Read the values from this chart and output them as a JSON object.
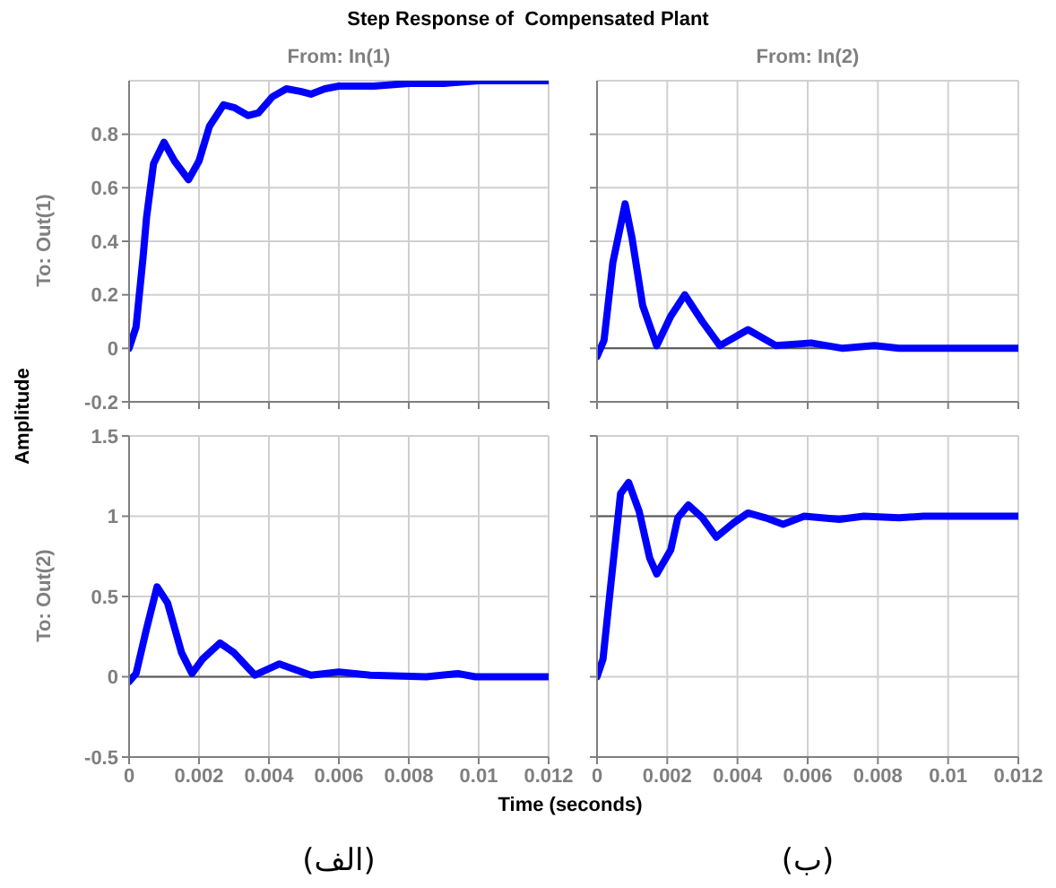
{
  "chart_data": [
    {
      "type": "line",
      "title": "Step Response of  Compensated Plant",
      "subtitle": "From: In(1)",
      "ylabel": "To: Out(1)",
      "annotations": [
        "Amplitude"
      ],
      "x": [
        0,
        0.0002,
        0.0004,
        0.0005,
        0.0007,
        0.001,
        0.0013,
        0.0017,
        0.002,
        0.0023,
        0.0027,
        0.003,
        0.0034,
        0.0037,
        0.0041,
        0.0045,
        0.0049,
        0.0052,
        0.0056,
        0.006,
        0.007,
        0.008,
        0.009,
        0.01,
        0.012
      ],
      "series": [
        {
          "color": "#0000ff",
          "values": [
            0,
            0.08,
            0.34,
            0.49,
            0.69,
            0.77,
            0.7,
            0.63,
            0.7,
            0.83,
            0.91,
            0.9,
            0.87,
            0.88,
            0.94,
            0.97,
            0.96,
            0.95,
            0.97,
            0.98,
            0.98,
            0.99,
            0.99,
            1.0,
            1.0
          ]
        }
      ],
      "xlim": [
        0,
        0.012
      ],
      "xticks": [
        0,
        0.002,
        0.004,
        0.006,
        0.008,
        0.01,
        0.012
      ],
      "ylim": [
        -0.2,
        1.0
      ],
      "yticks": [
        -0.2,
        0,
        0.2,
        0.4,
        0.6,
        0.8
      ],
      "grid": true,
      "tick_labels": "y",
      "marker": "none",
      "line_style": "solid"
    },
    {
      "type": "line",
      "subtitle": "From: In(2)",
      "x": [
        0,
        0.0002,
        0.00045,
        0.0008,
        0.001,
        0.0013,
        0.0017,
        0.0021,
        0.0025,
        0.003,
        0.0035,
        0.0043,
        0.0051,
        0.0061,
        0.007,
        0.0079,
        0.0086,
        0.012
      ],
      "series": [
        {
          "color": "#0000ff",
          "values": [
            -0.03,
            0.03,
            0.32,
            0.54,
            0.41,
            0.16,
            0.01,
            0.12,
            0.2,
            0.1,
            0.01,
            0.07,
            0.01,
            0.02,
            0,
            0.01,
            0,
            0
          ]
        }
      ],
      "xlim": [
        0,
        0.012
      ],
      "xticks": [
        0,
        0.002,
        0.004,
        0.006,
        0.008,
        0.01,
        0.012
      ],
      "ylim": [
        -0.2,
        1.0
      ],
      "yticks": [
        -0.2,
        0,
        0.2,
        0.4,
        0.6,
        0.8
      ],
      "grid": true,
      "tick_labels": false,
      "marker": "none",
      "line_style": "solid",
      "ref_lines": [
        {
          "axis": "y",
          "value": 0,
          "color": "#555555"
        }
      ]
    },
    {
      "type": "line",
      "ylabel": "To: Out(2)",
      "xlabel": "Time (seconds)",
      "annotations": [
        "(الف)"
      ],
      "x": [
        0,
        0.0002,
        0.0005,
        0.0008,
        0.0011,
        0.0015,
        0.0018,
        0.0021,
        0.0026,
        0.003,
        0.0036,
        0.0043,
        0.0052,
        0.006,
        0.0069,
        0.0085,
        0.0094,
        0.0099,
        0.012
      ],
      "series": [
        {
          "color": "#0000ff",
          "values": [
            -0.03,
            0.02,
            0.3,
            0.56,
            0.46,
            0.15,
            0.02,
            0.11,
            0.21,
            0.15,
            0.01,
            0.08,
            0.01,
            0.03,
            0.01,
            0,
            0.02,
            0,
            0
          ]
        }
      ],
      "xlim": [
        0,
        0.012
      ],
      "xticks": [
        0,
        0.002,
        0.004,
        0.006,
        0.008,
        0.01,
        0.012
      ],
      "ylim": [
        -0.5,
        1.5
      ],
      "yticks": [
        -0.5,
        0,
        0.5,
        1,
        1.5
      ],
      "grid": true,
      "marker": "none",
      "line_style": "solid",
      "ref_lines": [
        {
          "axis": "y",
          "value": 0,
          "color": "#555555"
        }
      ]
    },
    {
      "type": "line",
      "annotations": [
        "(ب)"
      ],
      "x": [
        0,
        0.00017,
        0.0004,
        0.00067,
        0.0009,
        0.0012,
        0.0015,
        0.0017,
        0.0021,
        0.0023,
        0.0026,
        0.003,
        0.0034,
        0.0039,
        0.0043,
        0.0048,
        0.0053,
        0.0059,
        0.0069,
        0.0076,
        0.0086,
        0.0093,
        0.012
      ],
      "series": [
        {
          "color": "#0000ff",
          "values": [
            0,
            0.11,
            0.59,
            1.14,
            1.21,
            1.03,
            0.74,
            0.64,
            0.79,
            0.99,
            1.07,
            0.99,
            0.87,
            0.96,
            1.02,
            0.99,
            0.95,
            1.0,
            0.98,
            1.0,
            0.99,
            1.0,
            1.0
          ]
        }
      ],
      "xlim": [
        0,
        0.012
      ],
      "xticks": [
        0,
        0.002,
        0.004,
        0.006,
        0.008,
        0.01,
        0.012
      ],
      "ylim": [
        -0.5,
        1.5
      ],
      "yticks": [
        -0.5,
        0,
        0.5,
        1,
        1.5
      ],
      "grid": true,
      "tick_labels": "x",
      "marker": "none",
      "line_style": "solid",
      "ref_lines": [
        {
          "axis": "y",
          "value": 1,
          "color": "#555555"
        }
      ]
    }
  ]
}
